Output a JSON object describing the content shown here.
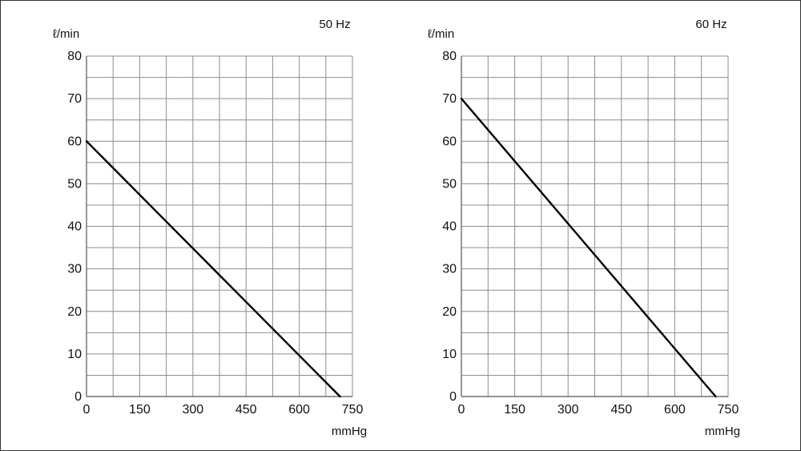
{
  "chart_data": [
    {
      "type": "line",
      "title": "50 Hz",
      "xlabel": "mmHg",
      "ylabel": "ℓ/min",
      "xlim": [
        0,
        750
      ],
      "ylim": [
        0,
        80
      ],
      "x_ticks": [
        "0",
        "150",
        "300",
        "450",
        "600",
        "750"
      ],
      "y_ticks": [
        "0",
        "10",
        "20",
        "30",
        "40",
        "50",
        "60",
        "70",
        "80"
      ],
      "grid": true,
      "series": [
        {
          "x": [
            0,
            715
          ],
          "y": [
            60,
            0
          ]
        }
      ]
    },
    {
      "type": "line",
      "title": "60 Hz",
      "xlabel": "mmHg",
      "ylabel": "ℓ/min",
      "xlim": [
        0,
        750
      ],
      "ylim": [
        0,
        80
      ],
      "x_ticks": [
        "0",
        "150",
        "300",
        "450",
        "600",
        "750"
      ],
      "y_ticks": [
        "0",
        "10",
        "20",
        "30",
        "40",
        "50",
        "60",
        "70",
        "80"
      ],
      "grid": true,
      "series": [
        {
          "x": [
            0,
            715
          ],
          "y": [
            70,
            0
          ]
        }
      ]
    }
  ],
  "colors": {
    "grid": "#8c8c8c",
    "line": "#000000",
    "text": "#111111",
    "frame": "#333333"
  }
}
